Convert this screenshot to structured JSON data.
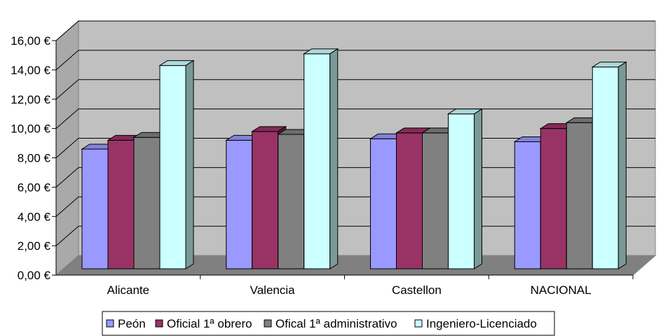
{
  "chart_data": {
    "type": "bar",
    "categories": [
      "Alicante",
      "Valencia",
      "Castellon",
      "NACIONAL"
    ],
    "series": [
      {
        "name": "Peón",
        "values": [
          8.6,
          9.2,
          9.3,
          9.1
        ],
        "color": "#9999FF"
      },
      {
        "name": "Oficial 1ª obrero",
        "values": [
          9.2,
          9.8,
          9.7,
          10.0
        ],
        "color": "#993366"
      },
      {
        "name": "Ofical 1ª administrativo",
        "values": [
          9.4,
          9.6,
          9.7,
          10.4
        ],
        "color": "#808080"
      },
      {
        "name": "Ingeniero-Licenciado",
        "values": [
          14.3,
          15.1,
          11.0,
          14.2
        ],
        "color": "#CCFFFF"
      }
    ],
    "y_ticks": [
      "0,00 €",
      "2,00 €",
      "4,00 €",
      "6,00 €",
      "8,00 €",
      "10,00 €",
      "12,00 €",
      "14,00 €",
      "16,00 €"
    ],
    "ylim": [
      0,
      16
    ],
    "grid": true,
    "legend_position": "bottom",
    "title": "",
    "xlabel": "",
    "ylabel": ""
  },
  "colors": {
    "wall": "#C0C0C0",
    "floor": "#808080"
  }
}
